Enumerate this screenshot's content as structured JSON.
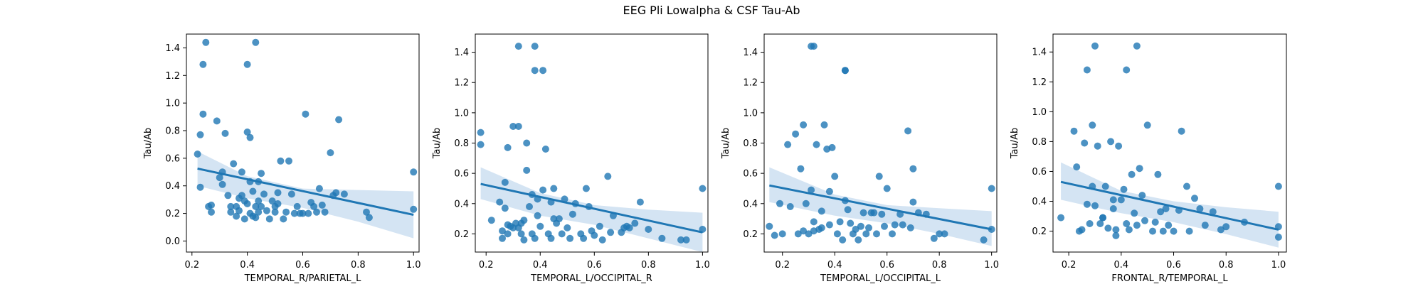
{
  "figure": {
    "title": "EEG Pli Lowalpha & CSF Tau-Ab"
  },
  "style": {
    "point_color": "#1f77b4",
    "line_color": "#1f77b4",
    "band_color": "#c6dbef"
  },
  "chart_data": [
    {
      "type": "scatter",
      "xlabel": "TEMPORAL_R/PARIETAL_L",
      "ylabel": "Tau/Ab",
      "xlim": [
        0.18,
        1.02
      ],
      "ylim": [
        -0.08,
        1.5
      ],
      "xticks": [
        0.2,
        0.4,
        0.6,
        0.8,
        1.0
      ],
      "xtick_labels": [
        "0.2",
        "0.4",
        "0.6",
        "0.8",
        "1.0"
      ],
      "yticks": [
        0.0,
        0.2,
        0.4,
        0.6,
        0.8,
        1.0,
        1.2,
        1.4
      ],
      "ytick_labels": [
        "0.0",
        "0.2",
        "0.4",
        "0.6",
        "0.8",
        "1.0",
        "1.2",
        "1.4"
      ],
      "regression": {
        "x": [
          0.22,
          1.0
        ],
        "y": [
          0.525,
          0.19
        ]
      },
      "band": {
        "x": [
          0.22,
          0.4,
          0.6,
          0.8,
          1.0
        ],
        "upper": [
          0.65,
          0.47,
          0.38,
          0.37,
          0.36
        ],
        "lower": [
          0.4,
          0.31,
          0.24,
          0.14,
          0.02
        ]
      },
      "points": {
        "x": [
          0.22,
          0.23,
          0.24,
          0.25,
          0.26,
          0.27,
          0.3,
          0.31,
          0.31,
          0.32,
          0.33,
          0.34,
          0.34,
          0.35,
          0.36,
          0.36,
          0.37,
          0.37,
          0.38,
          0.38,
          0.39,
          0.39,
          0.4,
          0.4,
          0.41,
          0.41,
          0.42,
          0.42,
          0.43,
          0.43,
          0.44,
          0.44,
          0.44,
          0.45,
          0.45,
          0.46,
          0.47,
          0.48,
          0.49,
          0.5,
          0.5,
          0.51,
          0.51,
          0.52,
          0.53,
          0.54,
          0.55,
          0.56,
          0.57,
          0.58,
          0.59,
          0.6,
          0.61,
          0.62,
          0.63,
          0.64,
          0.65,
          0.66,
          0.67,
          0.68,
          0.7,
          0.71,
          0.72,
          0.73,
          0.75,
          0.83,
          0.84,
          1.0,
          1.0,
          0.4,
          0.43,
          0.24,
          0.23,
          0.41,
          0.27,
          0.29
        ],
        "y": [
          0.63,
          0.39,
          1.28,
          1.44,
          0.25,
          0.21,
          0.46,
          0.5,
          0.41,
          0.78,
          0.33,
          0.25,
          0.21,
          0.56,
          0.25,
          0.18,
          0.22,
          0.31,
          0.5,
          0.33,
          0.29,
          0.16,
          0.27,
          0.79,
          0.2,
          0.43,
          0.36,
          0.18,
          0.25,
          0.17,
          0.29,
          0.43,
          0.21,
          0.49,
          0.25,
          0.34,
          0.22,
          0.16,
          0.29,
          0.25,
          0.21,
          0.27,
          0.35,
          0.58,
          0.16,
          0.21,
          0.58,
          0.34,
          0.2,
          0.25,
          0.2,
          0.2,
          0.92,
          0.2,
          0.28,
          0.25,
          0.21,
          0.38,
          0.26,
          0.21,
          0.64,
          0.33,
          0.35,
          0.88,
          0.34,
          0.21,
          0.17,
          0.5,
          0.23,
          1.28,
          1.44,
          0.92,
          0.77,
          0.75,
          0.26,
          0.87
        ]
      }
    },
    {
      "type": "scatter",
      "xlabel": "TEMPORAL_L/OCCIPITAL_R",
      "ylabel": "Tau/Ab",
      "xlim": [
        0.16,
        1.02
      ],
      "ylim": [
        0.08,
        1.52
      ],
      "xticks": [
        0.2,
        0.4,
        0.6,
        0.8,
        1.0
      ],
      "xtick_labels": [
        "0.2",
        "0.4",
        "0.6",
        "0.8",
        "1.0"
      ],
      "yticks": [
        0.2,
        0.4,
        0.6,
        0.8,
        1.0,
        1.2,
        1.4
      ],
      "ytick_labels": [
        "0.2",
        "0.4",
        "0.6",
        "0.8",
        "1.0",
        "1.2",
        "1.4"
      ],
      "regression": {
        "x": [
          0.18,
          1.0
        ],
        "y": [
          0.53,
          0.21
        ]
      },
      "band": {
        "x": [
          0.18,
          0.4,
          0.6,
          0.8,
          1.0
        ],
        "upper": [
          0.64,
          0.47,
          0.39,
          0.36,
          0.34
        ],
        "lower": [
          0.43,
          0.32,
          0.26,
          0.17,
          0.08
        ]
      },
      "points": {
        "x": [
          0.18,
          0.18,
          0.22,
          0.25,
          0.26,
          0.26,
          0.27,
          0.27,
          0.28,
          0.28,
          0.29,
          0.3,
          0.3,
          0.31,
          0.32,
          0.32,
          0.33,
          0.33,
          0.34,
          0.34,
          0.35,
          0.35,
          0.36,
          0.37,
          0.37,
          0.38,
          0.39,
          0.39,
          0.4,
          0.41,
          0.42,
          0.43,
          0.44,
          0.45,
          0.45,
          0.46,
          0.47,
          0.48,
          0.49,
          0.5,
          0.51,
          0.52,
          0.53,
          0.55,
          0.56,
          0.57,
          0.58,
          0.59,
          0.6,
          0.62,
          0.63,
          0.65,
          0.66,
          0.67,
          0.7,
          0.71,
          0.72,
          0.73,
          0.75,
          0.77,
          0.8,
          0.85,
          0.92,
          0.94,
          1.0,
          1.0,
          0.32,
          0.38,
          0.38,
          0.41,
          0.44,
          0.28
        ],
        "y": [
          0.87,
          0.79,
          0.29,
          0.41,
          0.22,
          0.17,
          0.54,
          0.37,
          0.2,
          0.26,
          0.25,
          0.91,
          0.24,
          0.27,
          0.24,
          0.91,
          0.2,
          0.27,
          0.16,
          0.29,
          0.8,
          0.62,
          0.38,
          0.2,
          0.46,
          0.17,
          0.32,
          0.43,
          0.25,
          0.49,
          0.76,
          0.2,
          0.17,
          0.3,
          0.5,
          0.27,
          0.3,
          0.2,
          0.43,
          0.24,
          0.17,
          0.33,
          0.4,
          0.2,
          0.17,
          0.5,
          0.38,
          0.22,
          0.19,
          0.25,
          0.16,
          0.58,
          0.21,
          0.32,
          0.21,
          0.24,
          0.25,
          0.24,
          0.27,
          0.41,
          0.23,
          0.17,
          0.16,
          0.16,
          0.5,
          0.23,
          1.44,
          1.44,
          1.28,
          1.28,
          0.41,
          0.77
        ]
      }
    },
    {
      "type": "scatter",
      "xlabel": "TEMPORAL_L/OCCIPITAL_L",
      "ylabel": "Tau/Ab",
      "xlim": [
        0.13,
        1.02
      ],
      "ylim": [
        0.08,
        1.52
      ],
      "xticks": [
        0.2,
        0.4,
        0.6,
        0.8,
        1.0
      ],
      "xtick_labels": [
        "0.2",
        "0.4",
        "0.6",
        "0.8",
        "1.0"
      ],
      "yticks": [
        0.2,
        0.4,
        0.6,
        0.8,
        1.0,
        1.2,
        1.4
      ],
      "ytick_labels": [
        "0.2",
        "0.4",
        "0.6",
        "0.8",
        "1.0",
        "1.2",
        "1.4"
      ],
      "regression": {
        "x": [
          0.15,
          1.0
        ],
        "y": [
          0.52,
          0.23
        ]
      },
      "band": {
        "x": [
          0.15,
          0.4,
          0.6,
          0.8,
          1.0
        ],
        "upper": [
          0.64,
          0.46,
          0.39,
          0.37,
          0.35
        ],
        "lower": [
          0.41,
          0.32,
          0.27,
          0.2,
          0.12
        ]
      },
      "points": {
        "x": [
          0.15,
          0.17,
          0.19,
          0.2,
          0.22,
          0.23,
          0.25,
          0.26,
          0.27,
          0.28,
          0.28,
          0.29,
          0.3,
          0.31,
          0.32,
          0.32,
          0.33,
          0.34,
          0.35,
          0.35,
          0.36,
          0.37,
          0.38,
          0.38,
          0.39,
          0.4,
          0.41,
          0.42,
          0.43,
          0.44,
          0.45,
          0.46,
          0.47,
          0.48,
          0.49,
          0.5,
          0.51,
          0.52,
          0.53,
          0.54,
          0.55,
          0.56,
          0.57,
          0.58,
          0.59,
          0.6,
          0.62,
          0.63,
          0.65,
          0.66,
          0.68,
          0.69,
          0.7,
          0.7,
          0.72,
          0.75,
          0.78,
          0.8,
          0.82,
          0.97,
          1.0,
          1.0,
          0.31,
          0.32,
          0.44,
          0.44
        ],
        "y": [
          0.25,
          0.19,
          0.4,
          0.2,
          0.79,
          0.38,
          0.86,
          0.2,
          0.63,
          0.92,
          0.22,
          0.4,
          0.2,
          0.49,
          0.22,
          0.28,
          0.79,
          0.23,
          0.24,
          0.35,
          0.92,
          0.76,
          0.48,
          0.26,
          0.77,
          0.58,
          0.2,
          0.28,
          0.16,
          0.42,
          0.36,
          0.27,
          0.2,
          0.23,
          0.16,
          0.25,
          0.34,
          0.2,
          0.24,
          0.34,
          0.34,
          0.2,
          0.58,
          0.33,
          0.25,
          0.5,
          0.2,
          0.26,
          0.33,
          0.26,
          0.88,
          0.24,
          0.63,
          0.41,
          0.34,
          0.33,
          0.17,
          0.2,
          0.2,
          0.16,
          0.5,
          0.23,
          1.44,
          1.44,
          1.28,
          1.28
        ]
      }
    },
    {
      "type": "scatter",
      "xlabel": "FRONTAL_R/TEMPORAL_L",
      "ylabel": "Tau/Ab",
      "xlim": [
        0.14,
        1.03
      ],
      "ylim": [
        0.06,
        1.52
      ],
      "xticks": [
        0.2,
        0.4,
        0.6,
        0.8,
        1.0
      ],
      "xtick_labels": [
        "0.2",
        "0.4",
        "0.6",
        "0.8",
        "1.0"
      ],
      "yticks": [
        0.2,
        0.4,
        0.6,
        0.8,
        1.0,
        1.2,
        1.4
      ],
      "ytick_labels": [
        "0.2",
        "0.4",
        "0.6",
        "0.8",
        "1.0",
        "1.2",
        "1.4"
      ],
      "regression": {
        "x": [
          0.17,
          1.0
        ],
        "y": [
          0.53,
          0.21
        ]
      },
      "band": {
        "x": [
          0.17,
          0.4,
          0.6,
          0.8,
          1.0
        ],
        "upper": [
          0.66,
          0.47,
          0.4,
          0.36,
          0.33
        ],
        "lower": [
          0.41,
          0.32,
          0.26,
          0.18,
          0.09
        ]
      },
      "points": {
        "x": [
          0.17,
          0.22,
          0.23,
          0.24,
          0.25,
          0.26,
          0.27,
          0.28,
          0.29,
          0.3,
          0.31,
          0.32,
          0.33,
          0.34,
          0.35,
          0.36,
          0.37,
          0.38,
          0.38,
          0.39,
          0.4,
          0.41,
          0.42,
          0.43,
          0.44,
          0.45,
          0.46,
          0.47,
          0.48,
          0.49,
          0.5,
          0.52,
          0.53,
          0.54,
          0.55,
          0.56,
          0.57,
          0.58,
          0.6,
          0.62,
          0.63,
          0.65,
          0.66,
          0.68,
          0.7,
          0.72,
          0.75,
          0.78,
          0.8,
          0.87,
          1.0,
          1.0,
          1.0,
          0.3,
          0.42,
          0.46,
          0.27,
          0.29,
          0.33,
          0.37
        ],
        "y": [
          0.29,
          0.87,
          0.63,
          0.2,
          0.21,
          0.79,
          0.38,
          0.25,
          0.91,
          0.37,
          0.77,
          0.25,
          0.29,
          0.5,
          0.22,
          0.8,
          0.35,
          0.21,
          0.17,
          0.77,
          0.41,
          0.48,
          0.25,
          0.21,
          0.58,
          0.32,
          0.24,
          0.62,
          0.44,
          0.27,
          0.91,
          0.2,
          0.26,
          0.58,
          0.33,
          0.2,
          0.35,
          0.24,
          0.2,
          0.34,
          0.87,
          0.5,
          0.2,
          0.42,
          0.35,
          0.24,
          0.33,
          0.21,
          0.23,
          0.26,
          0.5,
          0.23,
          0.16,
          1.44,
          1.28,
          1.44,
          1.28,
          0.5,
          0.29,
          0.41
        ]
      }
    }
  ]
}
